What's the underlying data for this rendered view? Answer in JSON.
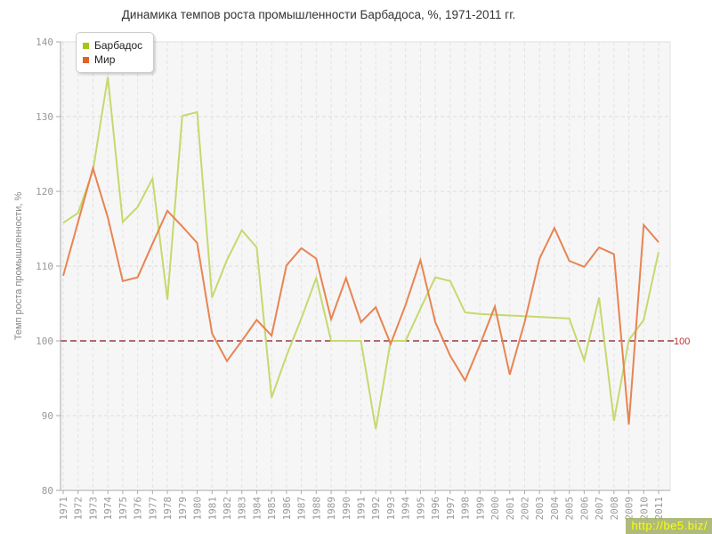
{
  "chart_data": {
    "type": "line",
    "title": "Динамика темпов роста промышленности Барбадоса, %, 1971-2011 гг.",
    "ylabel": "Темп роста промышленности, %",
    "xlabel": "",
    "ylim": [
      80,
      140
    ],
    "yticks": [
      80,
      90,
      100,
      110,
      120,
      130,
      140
    ],
    "grid": true,
    "legend_position": "top-left",
    "x": [
      1971,
      1972,
      1973,
      1974,
      1975,
      1976,
      1977,
      1978,
      1979,
      1980,
      1981,
      1982,
      1983,
      1984,
      1985,
      1986,
      1987,
      1988,
      1989,
      1990,
      1991,
      1992,
      1993,
      1994,
      1995,
      1996,
      1997,
      1998,
      1999,
      2000,
      2001,
      2002,
      2003,
      2004,
      2005,
      2006,
      2007,
      2008,
      2009,
      2010,
      2011
    ],
    "series": [
      {
        "name": "Барбадос",
        "line_color": "#c5d96d",
        "marker_color": "#a4c712",
        "values": [
          115.8,
          117.1,
          122.8,
          135.3,
          115.9,
          117.9,
          121.7,
          105.5,
          130.1,
          130.6,
          105.8,
          110.8,
          114.8,
          112.5,
          92.4,
          98.0,
          103.0,
          108.4,
          100.0,
          100.0,
          100.0,
          88.2,
          100.0,
          100.0,
          104.3,
          108.5,
          108.0,
          103.8,
          103.6,
          103.5,
          103.4,
          103.3,
          103.2,
          103.1,
          103.0,
          97.4,
          105.8,
          89.3,
          100.1,
          102.8,
          111.9
        ]
      },
      {
        "name": "Мир",
        "line_color": "#e88452",
        "marker_color": "#df6328",
        "values": [
          108.7,
          115.9,
          123.1,
          116.5,
          108.0,
          108.5,
          113.0,
          117.4,
          115.3,
          113.1,
          101.0,
          97.3,
          100.0,
          102.8,
          100.7,
          110.1,
          112.4,
          111.0,
          102.9,
          108.4,
          102.5,
          104.5,
          99.6,
          104.8,
          110.8,
          102.5,
          98.0,
          94.7,
          99.5,
          104.6,
          95.5,
          102.5,
          111.0,
          115.1,
          110.7,
          109.9,
          112.5,
          111.6,
          88.8,
          115.5,
          113.2
        ]
      }
    ],
    "ref_line": {
      "value": 100,
      "label": "100",
      "color": "#993a44"
    }
  },
  "watermark": {
    "text": "http://be5.biz/"
  }
}
